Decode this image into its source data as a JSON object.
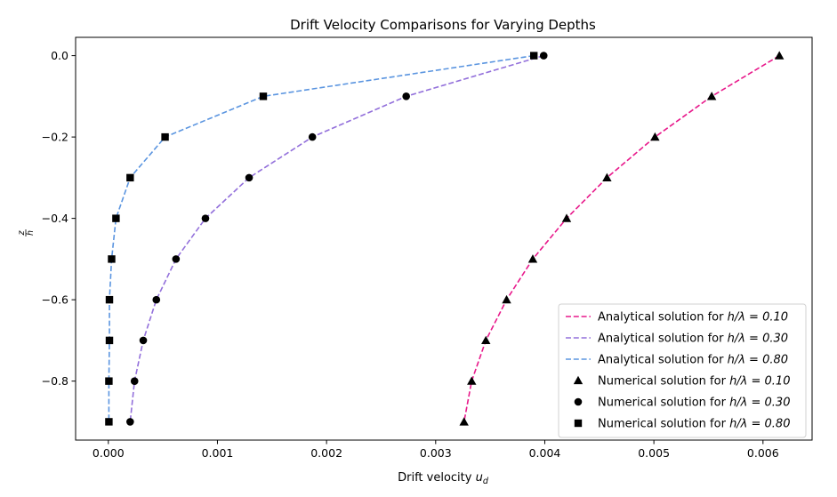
{
  "chart_data": {
    "type": "line",
    "title": "Drift Velocity Comparisons for Varying Depths",
    "xlabel": "Drift velocity u_d",
    "xlabel_main": "Drift velocity ",
    "xlabel_var": "u",
    "xlabel_sub": "d",
    "ylabel": "z/h",
    "ylabel_num": "z",
    "ylabel_den": "h",
    "xlim": [
      -0.0003,
      0.00645
    ],
    "ylim": [
      -0.945,
      0.045
    ],
    "xticks": [
      0.0,
      0.001,
      0.002,
      0.003,
      0.004,
      0.005,
      0.006
    ],
    "xtick_labels": [
      "0.000",
      "0.001",
      "0.002",
      "0.003",
      "0.004",
      "0.005",
      "0.006"
    ],
    "yticks": [
      0.0,
      -0.2,
      -0.4,
      -0.6,
      -0.8
    ],
    "ytick_labels": [
      "0.0",
      "−0.2",
      "−0.4",
      "−0.6",
      "−0.8"
    ],
    "grid": false,
    "legend_position": "lower-right",
    "z": [
      0.0,
      -0.1,
      -0.2,
      -0.3,
      -0.4,
      -0.5,
      -0.6,
      -0.7,
      -0.8,
      -0.9
    ],
    "series": [
      {
        "kind": "analytical",
        "label_prefix": "Analytical solution for ",
        "label_math": "h/λ = 0.10",
        "style": "dashed",
        "color": "#e8198b",
        "values": [
          0.00615,
          0.00553,
          0.00501,
          0.00457,
          0.0042,
          0.00389,
          0.00365,
          0.00346,
          0.00333,
          0.00326
        ]
      },
      {
        "kind": "analytical",
        "label_prefix": "Analytical solution for ",
        "label_math": "h/λ = 0.30",
        "style": "dashed",
        "color": "#9370db",
        "values": [
          0.00399,
          0.00273,
          0.00187,
          0.00129,
          0.00089,
          0.00062,
          0.00044,
          0.00032,
          0.00024,
          0.0002
        ]
      },
      {
        "kind": "analytical",
        "label_prefix": "Analytical solution for ",
        "label_math": "h/λ = 0.80",
        "style": "dashed",
        "color": "#5b95e0",
        "values": [
          0.0039,
          0.00142,
          0.00052,
          0.0002,
          7e-05,
          3e-05,
          1e-05,
          1e-05,
          5e-06,
          5e-06
        ]
      },
      {
        "kind": "numerical",
        "label_prefix": "Numerical solution for ",
        "label_math": "h/λ = 0.10",
        "marker": "triangle",
        "color": "#000000",
        "values": [
          0.00615,
          0.00553,
          0.00501,
          0.00457,
          0.0042,
          0.00389,
          0.00365,
          0.00346,
          0.00333,
          0.00326
        ]
      },
      {
        "kind": "numerical",
        "label_prefix": "Numerical solution for ",
        "label_math": "h/λ = 0.30",
        "marker": "circle",
        "color": "#000000",
        "values": [
          0.00399,
          0.00273,
          0.00187,
          0.00129,
          0.00089,
          0.00062,
          0.00044,
          0.00032,
          0.00024,
          0.0002
        ]
      },
      {
        "kind": "numerical",
        "label_prefix": "Numerical solution for ",
        "label_math": "h/λ = 0.80",
        "marker": "square",
        "color": "#000000",
        "values": [
          0.0039,
          0.00142,
          0.00052,
          0.0002,
          7e-05,
          3e-05,
          1e-05,
          1e-05,
          5e-06,
          5e-06
        ]
      }
    ]
  }
}
